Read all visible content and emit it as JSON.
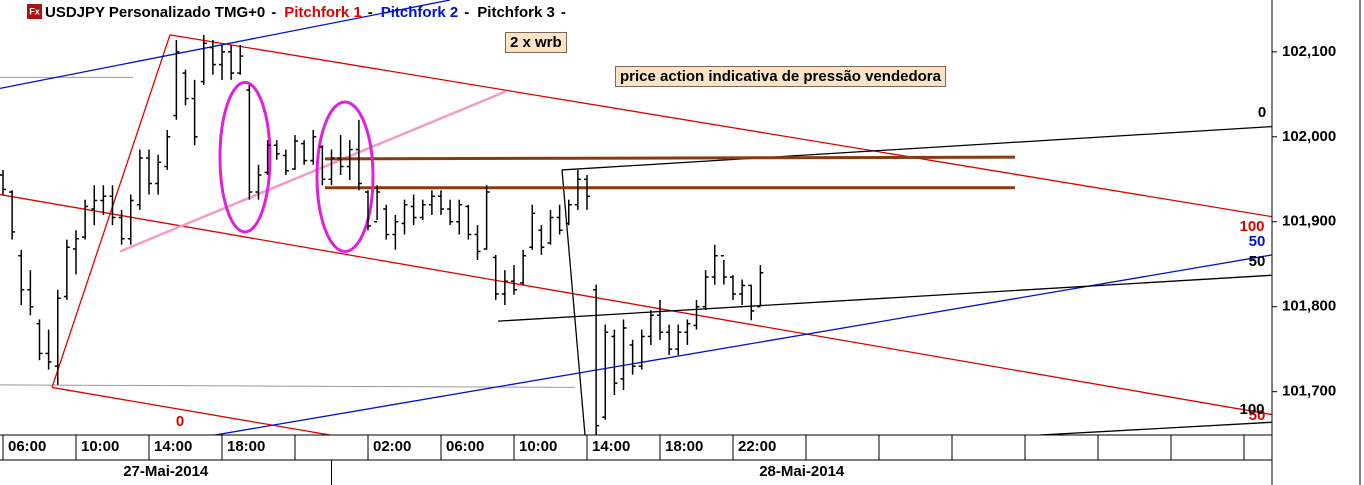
{
  "chart_data": {
    "type": "ohlc",
    "icon": "Fx",
    "title": "USDJPY Personalizado TMG+0",
    "legend_separator": "-",
    "legend": [
      {
        "name": "Pitchfork 1",
        "color": "#e00000"
      },
      {
        "name": "Pitchfork 2",
        "color": "#0010d0"
      },
      {
        "name": "Pitchfork 3",
        "color": "#000000"
      }
    ],
    "annotations": [
      "2 x wrb",
      "price action indicativa de pressão vendedora"
    ],
    "xlim": [
      5.836,
      75.534
    ],
    "ylim": [
      101.649,
      102.161
    ],
    "yticks": [
      {
        "value": 102.1,
        "label": "102,100"
      },
      {
        "value": 102.0,
        "label": "102,000"
      },
      {
        "value": 101.9,
        "label": "101,900"
      },
      {
        "value": 101.8,
        "label": "101,800"
      },
      {
        "value": 101.7,
        "label": "101,700"
      }
    ],
    "xticks": [
      {
        "value": 6,
        "label": "06:00"
      },
      {
        "value": 10,
        "label": "10:00"
      },
      {
        "value": 14,
        "label": "14:00"
      },
      {
        "value": 18,
        "label": "18:00"
      },
      {
        "value": 26,
        "label": "02:00"
      },
      {
        "value": 30,
        "label": "06:00"
      },
      {
        "value": 34,
        "label": "10:00"
      },
      {
        "value": 38,
        "label": "14:00"
      },
      {
        "value": 42,
        "label": "18:00"
      },
      {
        "value": 46,
        "label": "22:00"
      }
    ],
    "dates": [
      {
        "value": 0,
        "label": "27-Mai-2014"
      },
      {
        "value": 24,
        "label": "28-Mai-2014"
      }
    ],
    "color": "#000000",
    "x": [
      6,
      6.5,
      7,
      7.5,
      8,
      8.5,
      9,
      9.5,
      10,
      10.5,
      11,
      11.5,
      12,
      12.5,
      13,
      13.5,
      14,
      14.5,
      15,
      15.5,
      16,
      16.5,
      17,
      17.5,
      18,
      18.5,
      19,
      19.5,
      20,
      20.5,
      21,
      21.5,
      22,
      22.5,
      23,
      23.5,
      24,
      24.5,
      25,
      25.5,
      26,
      26.5,
      27,
      27.5,
      28,
      28.5,
      29,
      29.5,
      30,
      30.5,
      31,
      31.5,
      32,
      32.5,
      33,
      33.5,
      34,
      34.5,
      35,
      35.5,
      36,
      36.5,
      37,
      37.5,
      38,
      38.5,
      39,
      39.5,
      40,
      40.5,
      41,
      41.5,
      42,
      42.5,
      43,
      43.5,
      44,
      44.5,
      45,
      45.5,
      46,
      46.5,
      47,
      47.5
    ],
    "open": [
      101.955,
      101.935,
      101.86,
      101.82,
      101.78,
      101.745,
      101.73,
      101.812,
      101.868,
      101.882,
      101.915,
      101.925,
      101.93,
      101.905,
      101.88,
      101.92,
      101.975,
      101.945,
      101.965,
      102.025,
      102.075,
      102.045,
      102.065,
      102.105,
      102.085,
      102.1,
      102.075,
      102.055,
      101.935,
      101.958,
      101.99,
      101.978,
      101.962,
      101.992,
      101.972,
      101.988,
      101.95,
      101.975,
      101.965,
      101.985,
      101.935,
      101.9,
      101.915,
      101.885,
      101.898,
      101.918,
      101.905,
      101.92,
      101.93,
      101.915,
      101.9,
      101.918,
      101.885,
      101.868,
      101.858,
      101.815,
      101.83,
      101.828,
      101.87,
      101.89,
      101.875,
      101.905,
      101.898,
      101.92,
      101.95,
      101.82,
      101.67,
      101.765,
      101.715,
      101.755,
      101.73,
      101.765,
      101.79,
      101.77,
      101.75,
      101.77,
      101.778,
      101.8,
      101.835,
      101.86,
      101.835,
      101.815,
      101.825,
      101.8
    ],
    "high": [
      101.961,
      101.937,
      101.867,
      101.843,
      101.785,
      101.773,
      101.82,
      101.879,
      101.89,
      101.926,
      101.943,
      101.943,
      101.943,
      101.914,
      101.932,
      101.985,
      101.985,
      101.979,
      102.008,
      102.114,
      102.079,
      102.067,
      102.12,
      102.114,
      102.108,
      102.108,
      102.108,
      102.061,
      101.967,
      101.996,
      101.996,
      101.985,
      102.002,
      101.996,
      102.008,
      101.99,
      101.985,
      102.002,
      101.996,
      102.02,
      101.937,
      101.943,
      101.92,
      101.908,
      101.926,
      101.932,
      101.926,
      101.937,
      101.937,
      101.926,
      101.926,
      101.92,
      101.896,
      101.943,
      101.861,
      101.843,
      101.849,
      101.867,
      101.92,
      101.896,
      101.914,
      101.92,
      101.926,
      101.961,
      101.955,
      101.826,
      101.779,
      101.773,
      101.785,
      101.761,
      101.773,
      101.796,
      101.808,
      101.779,
      101.779,
      101.785,
      101.808,
      101.843,
      101.873,
      101.855,
      101.837,
      101.832,
      101.826,
      101.849
    ],
    "low": [
      101.932,
      101.879,
      101.802,
      101.79,
      101.737,
      101.726,
      101.708,
      101.808,
      101.838,
      101.879,
      101.896,
      101.908,
      101.896,
      101.873,
      101.873,
      101.914,
      101.932,
      101.932,
      101.961,
      102.02,
      102.037,
      101.99,
      102.061,
      102.073,
      102.067,
      102.067,
      102.073,
      101.926,
      101.926,
      101.955,
      101.973,
      101.955,
      101.961,
      101.967,
      101.967,
      101.943,
      101.943,
      101.955,
      101.949,
      101.937,
      101.89,
      101.902,
      101.879,
      101.867,
      101.885,
      101.896,
      101.902,
      101.908,
      101.908,
      101.896,
      101.885,
      101.879,
      101.855,
      101.867,
      101.808,
      101.802,
      101.814,
      101.826,
      101.867,
      101.861,
      101.873,
      101.885,
      101.896,
      101.914,
      101.914,
      101.649,
      101.667,
      101.696,
      101.702,
      101.72,
      101.726,
      101.755,
      101.761,
      101.743,
      101.743,
      101.755,
      101.773,
      101.796,
      101.826,
      101.826,
      101.808,
      101.802,
      101.784,
      101.802
    ],
    "close": [
      101.938,
      101.888,
      101.82,
      101.8,
      101.745,
      101.735,
      101.81,
      101.87,
      101.88,
      101.918,
      101.925,
      101.93,
      101.905,
      101.88,
      101.925,
      101.975,
      101.945,
      101.97,
      102.0,
      102.1,
      102.045,
      102.0,
      102.11,
      102.085,
      102.1,
      102.075,
      102.095,
      101.935,
      101.955,
      101.99,
      101.98,
      101.96,
      101.995,
      101.972,
      102.0,
      101.95,
      101.975,
      101.965,
      101.985,
      101.945,
      101.895,
      101.935,
      101.885,
      101.9,
      101.92,
      101.905,
      101.92,
      101.93,
      101.915,
      101.9,
      101.92,
      101.885,
      101.865,
      101.935,
      101.815,
      101.83,
      101.82,
      101.86,
      101.91,
      101.87,
      101.905,
      101.89,
      101.92,
      101.95,
      101.93,
      101.66,
      101.77,
      101.71,
      101.775,
      101.73,
      101.765,
      101.79,
      101.77,
      101.75,
      101.77,
      101.78,
      101.8,
      101.835,
      101.86,
      101.835,
      101.815,
      101.825,
      101.795,
      101.84
    ],
    "lines": [
      {
        "color": "#999999",
        "width": 1,
        "x": [
          5.836,
          13.123
        ],
        "y": [
          102.07,
          102.07
        ]
      },
      {
        "color": "#999999",
        "width": 1,
        "x": [
          5.836,
          37.342
        ],
        "y": [
          101.708,
          101.705
        ]
      },
      {
        "color": "#e00000",
        "width": 1.3,
        "x": [
          8.685,
          15.151
        ],
        "y": [
          101.705,
          102.12
        ]
      },
      {
        "color": "#e00000",
        "width": 1.3,
        "x": [
          15.151,
          75.534
        ],
        "y": [
          102.12,
          101.906
        ]
      },
      {
        "color": "#e00000",
        "width": 1.3,
        "x": [
          5.836,
          75.534
        ],
        "y": [
          101.932,
          101.673
        ]
      },
      {
        "color": "#e00000",
        "width": 1.3,
        "x": [
          8.685,
          23.918
        ],
        "y": [
          101.705,
          101.649
        ]
      },
      {
        "color": "#0010d0",
        "width": 1.3,
        "x": [
          5.836,
          30.493
        ],
        "y": [
          102.057,
          102.161
        ]
      },
      {
        "color": "#0010d0",
        "width": 1.3,
        "x": [
          17.616,
          75.534
        ],
        "y": [
          101.649,
          101.861
        ]
      },
      {
        "color": "#000000",
        "width": 1.3,
        "x": [
          36.63,
          75.534
        ],
        "y": [
          101.961,
          102.012
        ]
      },
      {
        "color": "#000000",
        "width": 1.3,
        "x": [
          33.123,
          75.534
        ],
        "y": [
          101.783,
          101.837
        ]
      },
      {
        "color": "#000000",
        "width": 1.3,
        "x": [
          36.63,
          37.89
        ],
        "y": [
          101.961,
          101.649
        ]
      },
      {
        "color": "#000000",
        "width": 1.3,
        "x": [
          62.822,
          75.534
        ],
        "y": [
          101.649,
          101.664
        ]
      },
      {
        "color": "#f49ac8",
        "width": 2.5,
        "x": [
          12.411,
          33.507
        ],
        "y": [
          101.865,
          102.053
        ]
      },
      {
        "color": "#8b3a0f",
        "width": 3,
        "x": [
          23.644,
          61.452
        ],
        "y": [
          101.974,
          101.976
        ]
      },
      {
        "color": "#8b3a0f",
        "width": 3,
        "x": [
          23.644,
          61.452
        ],
        "y": [
          101.94,
          101.94
        ]
      }
    ],
    "ellipses": [
      {
        "color": "#e020e0",
        "cx": 19.26,
        "cy": 101.976,
        "rx": 1.37,
        "ry": 0.088
      },
      {
        "color": "#e020e0",
        "cx": 24.74,
        "cy": 101.953,
        "rx": 1.534,
        "ry": 0.088
      }
    ],
    "level_labels": [
      {
        "text": "0",
        "color": "#000000"
      },
      {
        "text": "100",
        "color": "#e00000"
      },
      {
        "text": "50",
        "color": "#0010d0"
      },
      {
        "text": "50",
        "color": "#000000"
      },
      {
        "text": "50",
        "color": "#e00000"
      },
      {
        "text": "100",
        "color": "#000000"
      },
      {
        "text": "0",
        "color": "#e00000"
      }
    ]
  }
}
